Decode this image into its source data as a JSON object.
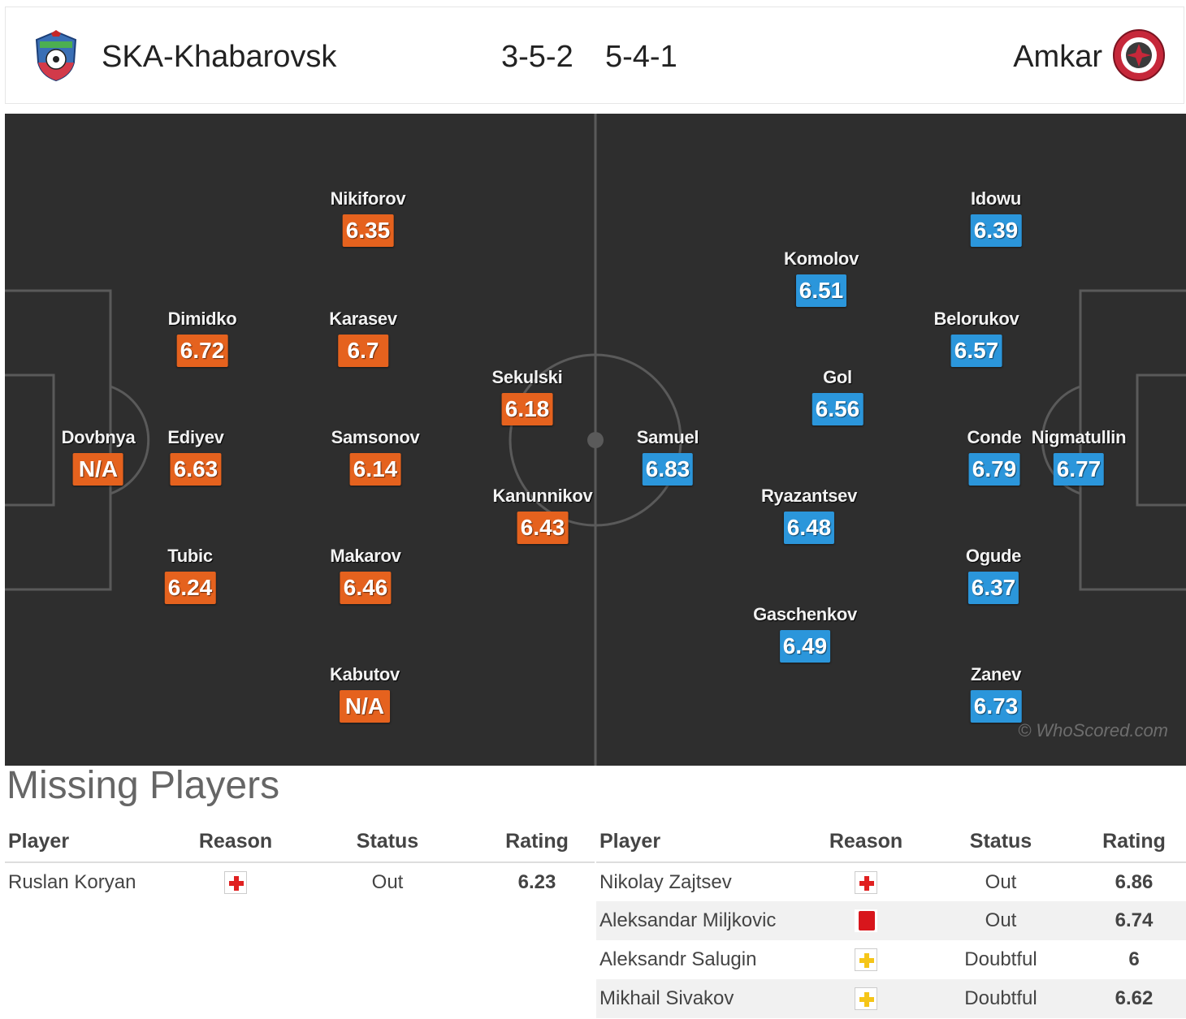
{
  "header": {
    "home_team": "SKA-Khabarovsk",
    "home_formation": "3-5-2",
    "away_formation": "5-4-1",
    "away_team": "Amkar"
  },
  "colors": {
    "home_rating": "#e5621e",
    "away_rating": "#2b96db",
    "pitch": "#2e2e2e",
    "lines": "#5a5a5a"
  },
  "pitch": {
    "watermark": "© WhoScored.com",
    "home_players": [
      {
        "name": "Dovbnya",
        "rating": "N/A"
      },
      {
        "name": "Dimidko",
        "rating": "6.72"
      },
      {
        "name": "Ediyev",
        "rating": "6.63"
      },
      {
        "name": "Tubic",
        "rating": "6.24"
      },
      {
        "name": "Nikiforov",
        "rating": "6.35"
      },
      {
        "name": "Karasev",
        "rating": "6.7"
      },
      {
        "name": "Samsonov",
        "rating": "6.14"
      },
      {
        "name": "Makarov",
        "rating": "6.46"
      },
      {
        "name": "Kabutov",
        "rating": "N/A"
      },
      {
        "name": "Sekulski",
        "rating": "6.18"
      },
      {
        "name": "Kanunnikov",
        "rating": "6.43"
      }
    ],
    "away_players": [
      {
        "name": "Samuel",
        "rating": "6.83"
      },
      {
        "name": "Komolov",
        "rating": "6.51"
      },
      {
        "name": "Gol",
        "rating": "6.56"
      },
      {
        "name": "Ryazantsev",
        "rating": "6.48"
      },
      {
        "name": "Gaschenkov",
        "rating": "6.49"
      },
      {
        "name": "Idowu",
        "rating": "6.39"
      },
      {
        "name": "Belorukov",
        "rating": "6.57"
      },
      {
        "name": "Conde",
        "rating": "6.79"
      },
      {
        "name": "Ogude",
        "rating": "6.37"
      },
      {
        "name": "Zanev",
        "rating": "6.73"
      },
      {
        "name": "Nigmatullin",
        "rating": "6.77"
      }
    ]
  },
  "missing": {
    "title": "Missing Players",
    "headers": {
      "player": "Player",
      "reason": "Reason",
      "status": "Status",
      "rating": "Rating"
    },
    "home": [
      {
        "player": "Ruslan Koryan",
        "reason_icon": "injury-icon",
        "status": "Out",
        "rating": "6.23"
      }
    ],
    "away": [
      {
        "player": "Nikolay Zajtsev",
        "reason_icon": "injury-icon",
        "status": "Out",
        "rating": "6.86"
      },
      {
        "player": "Aleksandar Miljkovic",
        "reason_icon": "red-card-icon",
        "status": "Out",
        "rating": "6.74"
      },
      {
        "player": "Aleksandr Salugin",
        "reason_icon": "doubtful-icon",
        "status": "Doubtful",
        "rating": "6"
      },
      {
        "player": "Mikhail Sivakov",
        "reason_icon": "doubtful-icon",
        "status": "Doubtful",
        "rating": "6.62"
      }
    ]
  }
}
